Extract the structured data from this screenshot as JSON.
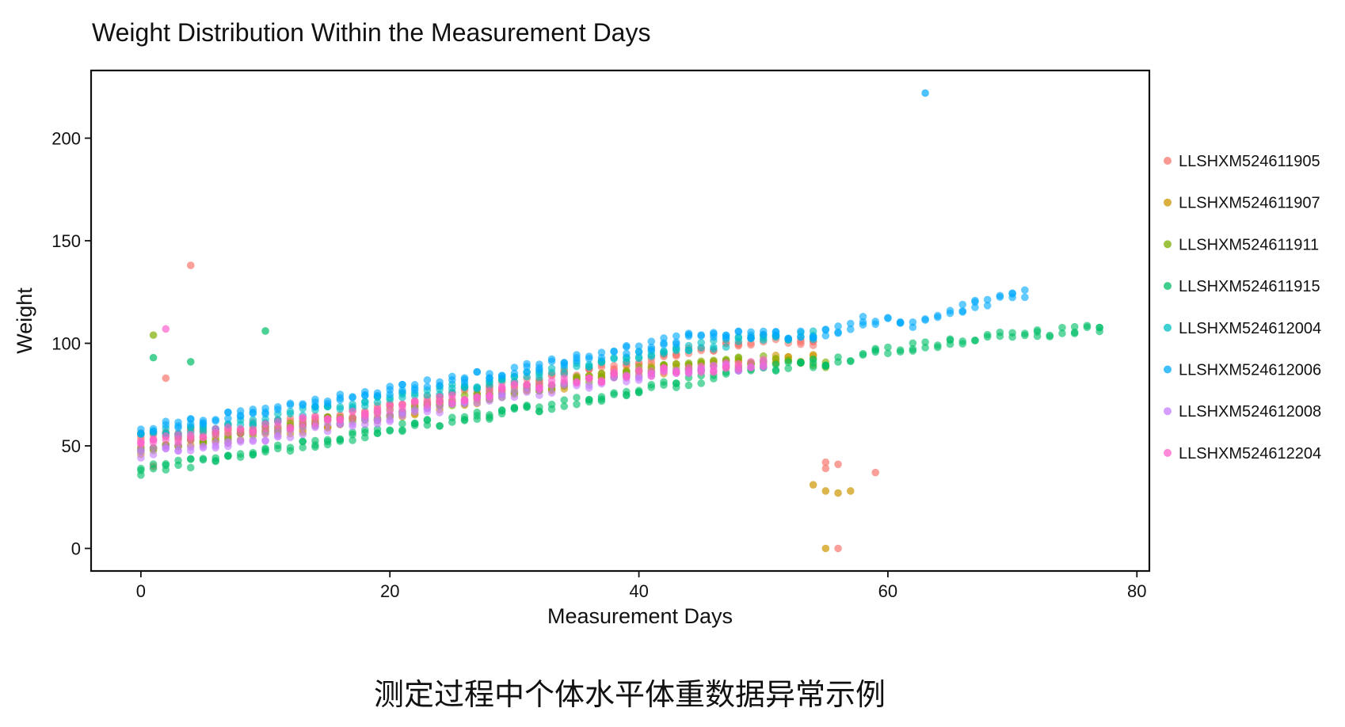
{
  "chart_data": {
    "type": "scatter",
    "title": "Weight Distribution Within the Measurement Days",
    "xlabel": "Measurement Days",
    "ylabel": "Weight",
    "xlim": [
      -4,
      81
    ],
    "ylim": [
      -11,
      233
    ],
    "xticks": [
      0,
      20,
      40,
      60,
      80
    ],
    "yticks": [
      0,
      50,
      100,
      150,
      200
    ],
    "grid": false,
    "legend_position": "right",
    "series": [
      {
        "name": "LLSHXM524611905",
        "color": "#F8766D",
        "base": [
          [
            0,
            54
          ],
          [
            10,
            60
          ],
          [
            20,
            69
          ],
          [
            30,
            80
          ],
          [
            40,
            91
          ],
          [
            45,
            97
          ],
          [
            50,
            102
          ],
          [
            54,
            100
          ]
        ],
        "outliers": [
          [
            4,
            138
          ],
          [
            2,
            83
          ],
          [
            1,
            40
          ],
          [
            55,
            42
          ],
          [
            55,
            39
          ],
          [
            56,
            41
          ],
          [
            56,
            0
          ],
          [
            59,
            37
          ]
        ]
      },
      {
        "name": "LLSHXM524611907",
        "color": "#CD9600",
        "base": [
          [
            0,
            48
          ],
          [
            10,
            56
          ],
          [
            20,
            65
          ],
          [
            30,
            76
          ],
          [
            40,
            86
          ],
          [
            50,
            92
          ],
          [
            54,
            93
          ]
        ],
        "outliers": [
          [
            54,
            31
          ],
          [
            55,
            28
          ],
          [
            56,
            27
          ],
          [
            57,
            28
          ],
          [
            55,
            0
          ]
        ]
      },
      {
        "name": "LLSHXM524611911",
        "color": "#7CAE00",
        "base": [
          [
            0,
            49
          ],
          [
            10,
            58
          ],
          [
            20,
            66
          ],
          [
            30,
            77
          ],
          [
            40,
            87
          ],
          [
            50,
            92
          ],
          [
            55,
            90
          ]
        ],
        "outliers": [
          [
            1,
            104
          ]
        ]
      },
      {
        "name": "LLSHXM524611915",
        "color": "#00BE67",
        "base": [
          [
            0,
            38
          ],
          [
            10,
            47
          ],
          [
            20,
            58
          ],
          [
            30,
            67
          ],
          [
            40,
            77
          ],
          [
            50,
            88
          ],
          [
            55,
            91
          ],
          [
            60,
            97
          ],
          [
            65,
            100
          ],
          [
            70,
            104
          ],
          [
            77,
            107
          ]
        ],
        "outliers": [
          [
            1,
            93
          ],
          [
            4,
            91
          ],
          [
            10,
            106
          ]
        ]
      },
      {
        "name": "LLSHXM524612004",
        "color": "#00BFC4",
        "base": [
          [
            0,
            55
          ],
          [
            10,
            63
          ],
          [
            20,
            73
          ],
          [
            30,
            83
          ],
          [
            40,
            94
          ],
          [
            50,
            103
          ],
          [
            54,
            104
          ]
        ],
        "outliers": []
      },
      {
        "name": "LLSHXM524612006",
        "color": "#00A9FF",
        "base": [
          [
            0,
            58
          ],
          [
            10,
            67
          ],
          [
            20,
            77
          ],
          [
            30,
            87
          ],
          [
            40,
            98
          ],
          [
            45,
            104
          ],
          [
            50,
            104
          ],
          [
            55,
            105
          ],
          [
            58,
            111
          ],
          [
            62,
            110
          ],
          [
            65,
            116
          ],
          [
            68,
            120
          ],
          [
            71,
            124
          ]
        ],
        "outliers": [
          [
            63,
            222
          ]
        ]
      },
      {
        "name": "LLSHXM524612008",
        "color": "#C77CFF",
        "base": [
          [
            0,
            46
          ],
          [
            10,
            54
          ],
          [
            20,
            64
          ],
          [
            30,
            75
          ],
          [
            40,
            84
          ],
          [
            50,
            90
          ]
        ],
        "outliers": []
      },
      {
        "name": "LLSHXM524612204",
        "color": "#FF61CC",
        "base": [
          [
            0,
            52
          ],
          [
            10,
            59
          ],
          [
            20,
            68
          ],
          [
            30,
            78
          ],
          [
            40,
            85
          ],
          [
            50,
            90
          ]
        ],
        "outliers": [
          [
            2,
            107
          ]
        ]
      }
    ]
  },
  "caption": "测定过程中个体水平体重数据异常示例"
}
